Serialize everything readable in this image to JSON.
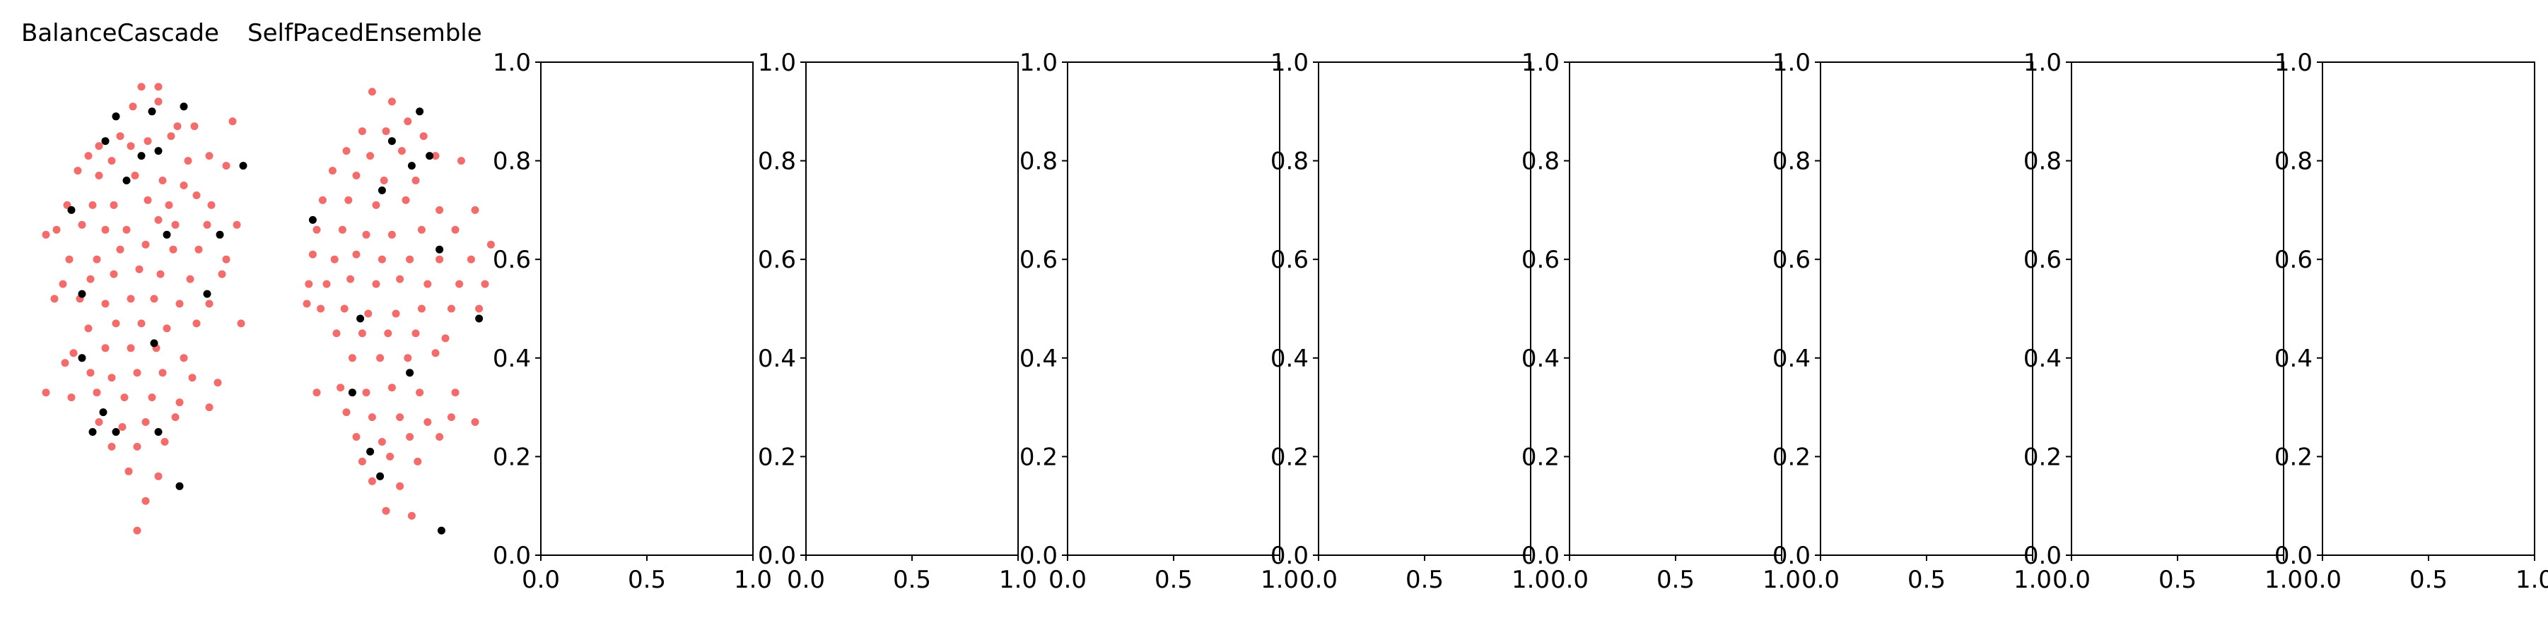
{
  "colors": {
    "majority": "#f03a3a",
    "minority": "#000000",
    "axis": "#000000",
    "background": "#ffffff"
  },
  "chart_data": [
    {
      "panel": 1,
      "type": "scatter",
      "title": "BalanceCascade",
      "axes_visible": false,
      "series": [
        {
          "color": "#f03a3a",
          "points": [
            [
              0.5,
              0.95
            ],
            [
              0.58,
              0.95
            ],
            [
              0.38,
              0.89
            ],
            [
              0.46,
              0.91
            ],
            [
              0.58,
              0.92
            ],
            [
              0.67,
              0.87
            ],
            [
              0.75,
              0.87
            ],
            [
              0.93,
              0.88
            ],
            [
              0.3,
              0.83
            ],
            [
              0.4,
              0.85
            ],
            [
              0.25,
              0.81
            ],
            [
              0.36,
              0.8
            ],
            [
              0.45,
              0.83
            ],
            [
              0.53,
              0.84
            ],
            [
              0.64,
              0.85
            ],
            [
              0.72,
              0.8
            ],
            [
              0.82,
              0.81
            ],
            [
              0.9,
              0.79
            ],
            [
              0.2,
              0.78
            ],
            [
              0.3,
              0.77
            ],
            [
              0.47,
              0.77
            ],
            [
              0.6,
              0.76
            ],
            [
              0.7,
              0.75
            ],
            [
              0.15,
              0.71
            ],
            [
              0.27,
              0.71
            ],
            [
              0.37,
              0.71
            ],
            [
              0.53,
              0.72
            ],
            [
              0.63,
              0.71
            ],
            [
              0.76,
              0.73
            ],
            [
              0.83,
              0.71
            ],
            [
              0.1,
              0.66
            ],
            [
              0.22,
              0.67
            ],
            [
              0.33,
              0.66
            ],
            [
              0.43,
              0.66
            ],
            [
              0.58,
              0.68
            ],
            [
              0.66,
              0.67
            ],
            [
              0.81,
              0.67
            ],
            [
              0.95,
              0.67
            ],
            [
              0.05,
              0.65
            ],
            [
              0.16,
              0.6
            ],
            [
              0.29,
              0.6
            ],
            [
              0.4,
              0.62
            ],
            [
              0.52,
              0.63
            ],
            [
              0.65,
              0.62
            ],
            [
              0.77,
              0.62
            ],
            [
              0.9,
              0.6
            ],
            [
              0.13,
              0.55
            ],
            [
              0.26,
              0.56
            ],
            [
              0.37,
              0.57
            ],
            [
              0.49,
              0.58
            ],
            [
              0.59,
              0.57
            ],
            [
              0.73,
              0.56
            ],
            [
              0.88,
              0.57
            ],
            [
              0.09,
              0.52
            ],
            [
              0.21,
              0.52
            ],
            [
              0.33,
              0.51
            ],
            [
              0.45,
              0.52
            ],
            [
              0.56,
              0.52
            ],
            [
              0.68,
              0.51
            ],
            [
              0.82,
              0.51
            ],
            [
              0.25,
              0.46
            ],
            [
              0.38,
              0.47
            ],
            [
              0.5,
              0.47
            ],
            [
              0.62,
              0.46
            ],
            [
              0.76,
              0.47
            ],
            [
              0.97,
              0.47
            ],
            [
              0.18,
              0.41
            ],
            [
              0.33,
              0.42
            ],
            [
              0.45,
              0.42
            ],
            [
              0.57,
              0.42
            ],
            [
              0.7,
              0.4
            ],
            [
              0.14,
              0.39
            ],
            [
              0.26,
              0.37
            ],
            [
              0.36,
              0.36
            ],
            [
              0.48,
              0.37
            ],
            [
              0.6,
              0.37
            ],
            [
              0.74,
              0.36
            ],
            [
              0.86,
              0.35
            ],
            [
              0.05,
              0.33
            ],
            [
              0.17,
              0.32
            ],
            [
              0.29,
              0.33
            ],
            [
              0.42,
              0.32
            ],
            [
              0.55,
              0.32
            ],
            [
              0.68,
              0.31
            ],
            [
              0.82,
              0.3
            ],
            [
              0.3,
              0.27
            ],
            [
              0.41,
              0.26
            ],
            [
              0.52,
              0.27
            ],
            [
              0.66,
              0.28
            ],
            [
              0.36,
              0.22
            ],
            [
              0.48,
              0.22
            ],
            [
              0.61,
              0.23
            ],
            [
              0.44,
              0.17
            ],
            [
              0.58,
              0.16
            ],
            [
              0.52,
              0.11
            ],
            [
              0.48,
              0.05
            ]
          ]
        },
        {
          "color": "#000000",
          "points": [
            [
              0.38,
              0.89
            ],
            [
              0.55,
              0.9
            ],
            [
              0.7,
              0.91
            ],
            [
              0.33,
              0.84
            ],
            [
              0.5,
              0.81
            ],
            [
              0.58,
              0.82
            ],
            [
              0.98,
              0.79
            ],
            [
              0.43,
              0.76
            ],
            [
              0.17,
              0.7
            ],
            [
              0.62,
              0.65
            ],
            [
              0.87,
              0.65
            ],
            [
              0.22,
              0.53
            ],
            [
              0.81,
              0.53
            ],
            [
              0.56,
              0.43
            ],
            [
              0.22,
              0.4
            ],
            [
              0.32,
              0.29
            ],
            [
              0.27,
              0.25
            ],
            [
              0.38,
              0.25
            ],
            [
              0.58,
              0.25
            ],
            [
              0.68,
              0.14
            ]
          ]
        }
      ]
    },
    {
      "panel": 2,
      "type": "scatter",
      "title": "SelfPacedEnsemble",
      "axes_visible": false,
      "series": [
        {
          "color": "#f03a3a",
          "points": [
            [
              0.38,
              0.94
            ],
            [
              0.48,
              0.92
            ],
            [
              0.33,
              0.86
            ],
            [
              0.45,
              0.86
            ],
            [
              0.56,
              0.88
            ],
            [
              0.64,
              0.85
            ],
            [
              0.25,
              0.82
            ],
            [
              0.37,
              0.81
            ],
            [
              0.53,
              0.82
            ],
            [
              0.7,
              0.81
            ],
            [
              0.83,
              0.8
            ],
            [
              0.18,
              0.78
            ],
            [
              0.3,
              0.77
            ],
            [
              0.44,
              0.76
            ],
            [
              0.6,
              0.76
            ],
            [
              0.13,
              0.72
            ],
            [
              0.26,
              0.72
            ],
            [
              0.4,
              0.71
            ],
            [
              0.55,
              0.72
            ],
            [
              0.72,
              0.7
            ],
            [
              0.9,
              0.7
            ],
            [
              0.1,
              0.66
            ],
            [
              0.23,
              0.66
            ],
            [
              0.35,
              0.65
            ],
            [
              0.48,
              0.65
            ],
            [
              0.63,
              0.66
            ],
            [
              0.8,
              0.66
            ],
            [
              0.98,
              0.63
            ],
            [
              0.08,
              0.61
            ],
            [
              0.19,
              0.6
            ],
            [
              0.3,
              0.61
            ],
            [
              0.43,
              0.6
            ],
            [
              0.57,
              0.6
            ],
            [
              0.72,
              0.6
            ],
            [
              0.88,
              0.6
            ],
            [
              0.06,
              0.55
            ],
            [
              0.15,
              0.55
            ],
            [
              0.27,
              0.56
            ],
            [
              0.4,
              0.55
            ],
            [
              0.52,
              0.56
            ],
            [
              0.66,
              0.55
            ],
            [
              0.82,
              0.55
            ],
            [
              0.95,
              0.55
            ],
            [
              0.05,
              0.51
            ],
            [
              0.12,
              0.5
            ],
            [
              0.24,
              0.5
            ],
            [
              0.36,
              0.49
            ],
            [
              0.5,
              0.49
            ],
            [
              0.63,
              0.5
            ],
            [
              0.78,
              0.5
            ],
            [
              0.92,
              0.5
            ],
            [
              0.2,
              0.45
            ],
            [
              0.33,
              0.45
            ],
            [
              0.46,
              0.45
            ],
            [
              0.6,
              0.45
            ],
            [
              0.75,
              0.44
            ],
            [
              0.28,
              0.4
            ],
            [
              0.42,
              0.4
            ],
            [
              0.56,
              0.4
            ],
            [
              0.7,
              0.41
            ],
            [
              0.1,
              0.33
            ],
            [
              0.22,
              0.34
            ],
            [
              0.35,
              0.33
            ],
            [
              0.48,
              0.34
            ],
            [
              0.62,
              0.33
            ],
            [
              0.8,
              0.33
            ],
            [
              0.25,
              0.29
            ],
            [
              0.38,
              0.28
            ],
            [
              0.52,
              0.28
            ],
            [
              0.66,
              0.27
            ],
            [
              0.78,
              0.28
            ],
            [
              0.9,
              0.27
            ],
            [
              0.3,
              0.24
            ],
            [
              0.43,
              0.23
            ],
            [
              0.57,
              0.24
            ],
            [
              0.72,
              0.24
            ],
            [
              0.33,
              0.19
            ],
            [
              0.47,
              0.2
            ],
            [
              0.61,
              0.19
            ],
            [
              0.38,
              0.15
            ],
            [
              0.52,
              0.14
            ],
            [
              0.45,
              0.09
            ],
            [
              0.58,
              0.08
            ]
          ]
        },
        {
          "color": "#000000",
          "points": [
            [
              0.62,
              0.9
            ],
            [
              0.48,
              0.84
            ],
            [
              0.67,
              0.81
            ],
            [
              0.58,
              0.79
            ],
            [
              0.43,
              0.74
            ],
            [
              0.08,
              0.68
            ],
            [
              0.72,
              0.62
            ],
            [
              0.32,
              0.48
            ],
            [
              0.92,
              0.48
            ],
            [
              0.57,
              0.37
            ],
            [
              0.28,
              0.33
            ],
            [
              0.37,
              0.21
            ],
            [
              0.42,
              0.16
            ],
            [
              0.73,
              0.05
            ]
          ]
        }
      ]
    },
    {
      "panel": 3,
      "type": "scatter",
      "title": "",
      "xlim": [
        0,
        1
      ],
      "ylim": [
        0,
        1
      ],
      "xticks": [
        "0.0",
        "0.5",
        "1.0"
      ],
      "yticks": [
        "0.0",
        "0.2",
        "0.4",
        "0.6",
        "0.8",
        "1.0"
      ],
      "series": []
    },
    {
      "panel": 4,
      "type": "scatter",
      "title": "",
      "xlim": [
        0,
        1
      ],
      "ylim": [
        0,
        1
      ],
      "xticks": [
        "0.0",
        "0.5",
        "1.0"
      ],
      "yticks": [
        "0.0",
        "0.2",
        "0.4",
        "0.6",
        "0.8",
        "1.0"
      ],
      "series": []
    },
    {
      "panel": 5,
      "type": "scatter",
      "title": "",
      "xlim": [
        0,
        1
      ],
      "ylim": [
        0,
        1
      ],
      "xticks": [
        "0.0",
        "0.5",
        "1.0"
      ],
      "yticks": [
        "0.0",
        "0.2",
        "0.4",
        "0.6",
        "0.8",
        "1.0"
      ],
      "series": []
    },
    {
      "panel": 6,
      "type": "scatter",
      "title": "",
      "xlim": [
        0,
        1
      ],
      "ylim": [
        0,
        1
      ],
      "xticks": [
        "0.0",
        "0.5",
        "1.0"
      ],
      "yticks": [
        "0.0",
        "0.2",
        "0.4",
        "0.6",
        "0.8",
        "1.0"
      ],
      "series": []
    },
    {
      "panel": 7,
      "type": "scatter",
      "title": "",
      "xlim": [
        0,
        1
      ],
      "ylim": [
        0,
        1
      ],
      "xticks": [
        "0.0",
        "0.5",
        "1.0"
      ],
      "yticks": [
        "0.0",
        "0.2",
        "0.4",
        "0.6",
        "0.8",
        "1.0"
      ],
      "series": []
    },
    {
      "panel": 8,
      "type": "scatter",
      "title": "",
      "xlim": [
        0,
        1
      ],
      "ylim": [
        0,
        1
      ],
      "xticks": [
        "0.0",
        "0.5",
        "1.0"
      ],
      "yticks": [
        "0.0",
        "0.2",
        "0.4",
        "0.6",
        "0.8",
        "1.0"
      ],
      "series": []
    },
    {
      "panel": 9,
      "type": "scatter",
      "title": "",
      "xlim": [
        0,
        1
      ],
      "ylim": [
        0,
        1
      ],
      "xticks": [
        "0.0",
        "0.5",
        "1.0"
      ],
      "yticks": [
        "0.0",
        "0.2",
        "0.4",
        "0.6",
        "0.8",
        "1.0"
      ],
      "series": []
    },
    {
      "panel": 10,
      "type": "scatter",
      "title": "",
      "xlim": [
        0,
        1
      ],
      "ylim": [
        0,
        1
      ],
      "xticks": [
        "0.0",
        "0.5",
        "1.0"
      ],
      "yticks": [
        "0.0",
        "0.2",
        "0.4",
        "0.6",
        "0.8",
        "1.0"
      ],
      "series": []
    }
  ]
}
